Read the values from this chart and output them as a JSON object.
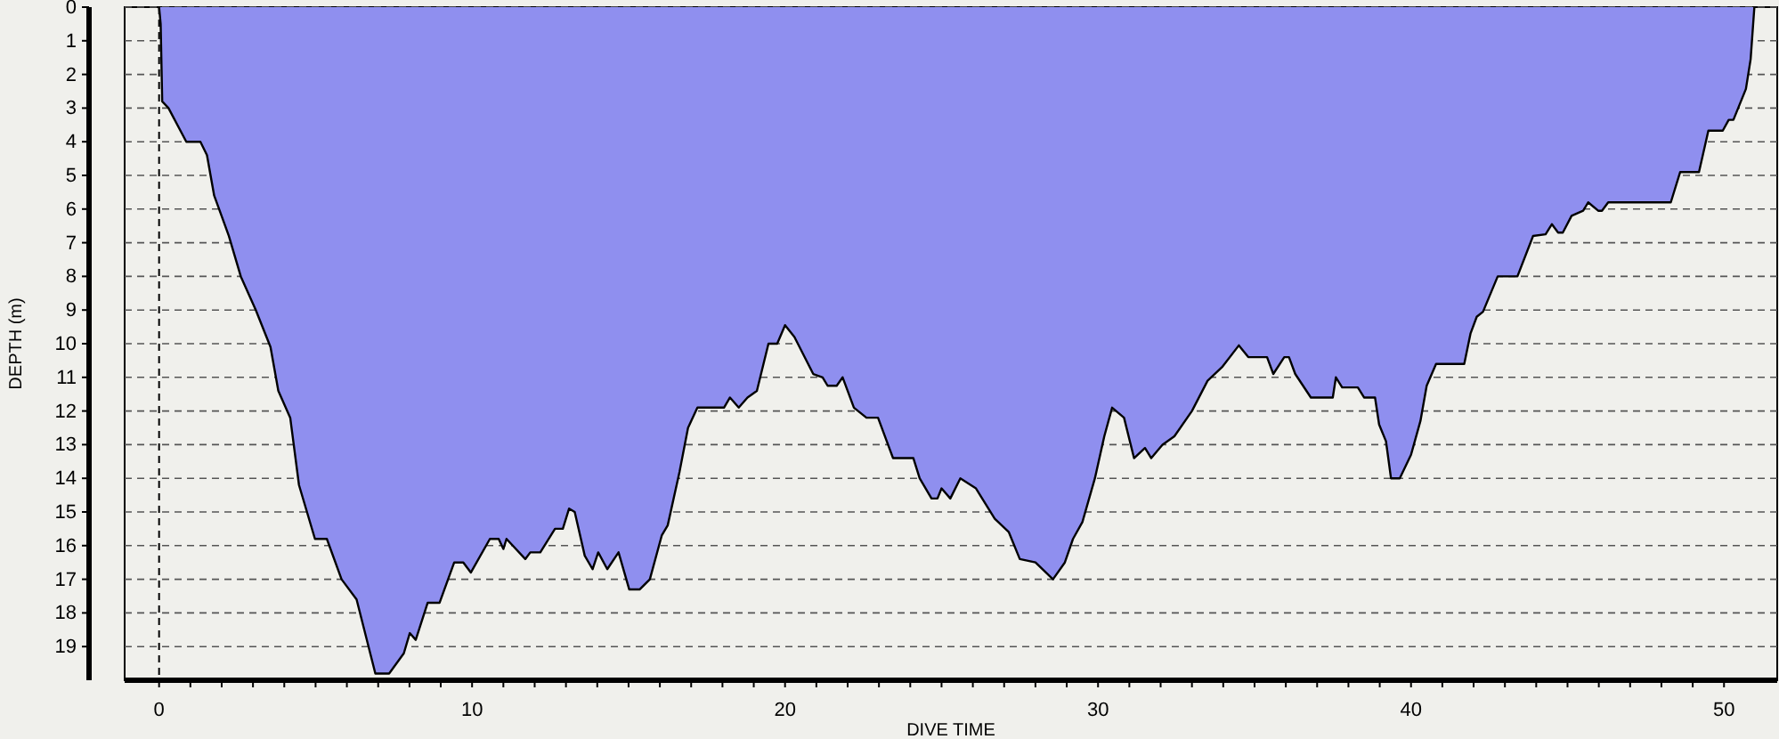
{
  "chart_data": {
    "type": "area",
    "xlabel": "DIVE TIME",
    "ylabel": "DEPTH (m)",
    "xlim": [
      -1.1,
      51.7
    ],
    "ylim": [
      20,
      0
    ],
    "xticks": [
      0,
      {
        "value": 1,
        "label": null
      },
      {
        "value": 2,
        "label": null
      },
      {
        "value": 3,
        "label": null
      },
      {
        "value": 4,
        "label": null
      },
      {
        "value": 5,
        "label": null
      },
      {
        "value": 6,
        "label": null
      },
      {
        "value": 7,
        "label": null
      },
      {
        "value": 8,
        "label": null
      },
      {
        "value": 9,
        "label": null
      },
      10,
      {
        "value": 11,
        "label": null
      },
      {
        "value": 12,
        "label": null
      },
      {
        "value": 13,
        "label": null
      },
      {
        "value": 14,
        "label": null
      },
      {
        "value": 15,
        "label": null
      },
      {
        "value": 16,
        "label": null
      },
      {
        "value": 17,
        "label": null
      },
      {
        "value": 18,
        "label": null
      },
      {
        "value": 19,
        "label": null
      },
      20,
      {
        "value": 21,
        "label": null
      },
      {
        "value": 22,
        "label": null
      },
      {
        "value": 23,
        "label": null
      },
      {
        "value": 24,
        "label": null
      },
      {
        "value": 25,
        "label": null
      },
      {
        "value": 26,
        "label": null
      },
      {
        "value": 27,
        "label": null
      },
      {
        "value": 28,
        "label": null
      },
      {
        "value": 29,
        "label": null
      },
      30,
      {
        "value": 31,
        "label": null
      },
      {
        "value": 32,
        "label": null
      },
      {
        "value": 33,
        "label": null
      },
      {
        "value": 34,
        "label": null
      },
      {
        "value": 35,
        "label": null
      },
      {
        "value": 36,
        "label": null
      },
      {
        "value": 37,
        "label": null
      },
      {
        "value": 38,
        "label": null
      },
      {
        "value": 39,
        "label": null
      },
      40,
      {
        "value": 41,
        "label": null
      },
      {
        "value": 42,
        "label": null
      },
      {
        "value": 43,
        "label": null
      },
      {
        "value": 44,
        "label": null
      },
      {
        "value": 45,
        "label": null
      },
      {
        "value": 46,
        "label": null
      },
      {
        "value": 47,
        "label": null
      },
      {
        "value": 48,
        "label": null
      },
      {
        "value": 49,
        "label": null
      },
      50
    ],
    "yticks": [
      0,
      1,
      2,
      3,
      4,
      5,
      6,
      7,
      8,
      9,
      10,
      11,
      12,
      13,
      14,
      15,
      16,
      17,
      18,
      19
    ],
    "grid": "y",
    "line_style": "solid",
    "ref_lines": [
      {
        "axis": "x",
        "value": 0,
        "label": null,
        "line_style": "dashed",
        "color": "#000000"
      }
    ],
    "series": [
      {
        "color": "#8f8fef",
        "x": [
          0,
          0.05,
          0.1,
          0.3,
          0.87,
          1.32,
          1.53,
          1.76,
          2.23,
          2.61,
          3.09,
          3.56,
          3.81,
          4.19,
          4.47,
          4.98,
          5.36,
          5.83,
          6.31,
          6.91,
          7.35,
          7.82,
          8.01,
          8.2,
          8.58,
          8.96,
          9.43,
          9.72,
          9.96,
          10.57,
          10.85,
          11.0,
          11.1,
          11.7,
          11.86,
          12.18,
          12.65,
          12.9,
          13.1,
          13.28,
          13.6,
          13.85,
          14.03,
          14.32,
          14.68,
          15.02,
          15.36,
          15.68,
          16.06,
          16.25,
          16.63,
          16.9,
          17.2,
          18.05,
          18.24,
          18.52,
          18.8,
          19.1,
          19.47,
          19.75,
          20.0,
          20.3,
          20.9,
          21.2,
          21.36,
          21.65,
          21.84,
          22.2,
          22.6,
          22.97,
          23.45,
          24.1,
          24.3,
          24.68,
          24.87,
          25.0,
          25.28,
          25.6,
          26.1,
          26.7,
          27.15,
          27.5,
          28.0,
          28.56,
          28.94,
          29.2,
          29.5,
          29.9,
          30.2,
          30.45,
          30.83,
          31.15,
          31.5,
          31.7,
          32.06,
          32.44,
          33.0,
          33.5,
          33.96,
          34.5,
          34.8,
          35.4,
          35.6,
          35.95,
          36.1,
          36.3,
          36.8,
          37.5,
          37.6,
          37.8,
          38.3,
          38.5,
          38.85,
          38.98,
          39.2,
          39.36,
          39.64,
          40.0,
          40.3,
          40.5,
          40.8,
          41.7,
          41.9,
          42.1,
          42.3,
          42.77,
          43.4,
          43.9,
          44.3,
          44.5,
          44.7,
          44.85,
          45.13,
          45.5,
          45.66,
          45.98,
          46.1,
          46.3,
          48.3,
          48.6,
          49.2,
          49.5,
          49.96,
          50.15,
          50.3,
          50.7,
          50.85,
          50.97
        ],
        "values": [
          0,
          0.5,
          2.8,
          3.0,
          4.0,
          4.0,
          4.4,
          5.6,
          6.8,
          8.0,
          9.0,
          10.1,
          11.4,
          12.2,
          14.2,
          15.8,
          15.8,
          17.0,
          17.6,
          19.8,
          19.8,
          19.2,
          18.6,
          18.8,
          17.7,
          17.7,
          16.5,
          16.5,
          16.8,
          15.8,
          15.8,
          16.1,
          15.8,
          16.4,
          16.2,
          16.2,
          15.5,
          15.5,
          14.9,
          15.0,
          16.3,
          16.7,
          16.2,
          16.7,
          16.2,
          17.3,
          17.3,
          17.0,
          15.7,
          15.4,
          13.8,
          12.5,
          11.9,
          11.9,
          11.6,
          11.9,
          11.6,
          11.4,
          10.0,
          10.0,
          9.45,
          9.8,
          10.9,
          11.0,
          11.25,
          11.25,
          11.0,
          11.9,
          12.2,
          12.2,
          13.4,
          13.4,
          14.0,
          14.6,
          14.6,
          14.3,
          14.6,
          14.0,
          14.3,
          15.2,
          15.6,
          16.4,
          16.5,
          17.0,
          16.5,
          15.8,
          15.3,
          14.0,
          12.75,
          11.9,
          12.2,
          13.4,
          13.1,
          13.4,
          13.0,
          12.75,
          12.0,
          11.1,
          10.7,
          10.05,
          10.4,
          10.4,
          10.9,
          10.4,
          10.4,
          10.9,
          11.6,
          11.6,
          11.0,
          11.3,
          11.3,
          11.6,
          11.6,
          12.4,
          12.9,
          14.0,
          14.0,
          13.3,
          12.3,
          11.25,
          10.6,
          10.6,
          9.7,
          9.2,
          9.05,
          8.0,
          8.0,
          6.8,
          6.75,
          6.45,
          6.7,
          6.7,
          6.2,
          6.05,
          5.8,
          6.05,
          6.05,
          5.8,
          5.8,
          4.9,
          4.9,
          3.67,
          3.67,
          3.35,
          3.35,
          2.43,
          1.55,
          0
        ]
      }
    ]
  }
}
